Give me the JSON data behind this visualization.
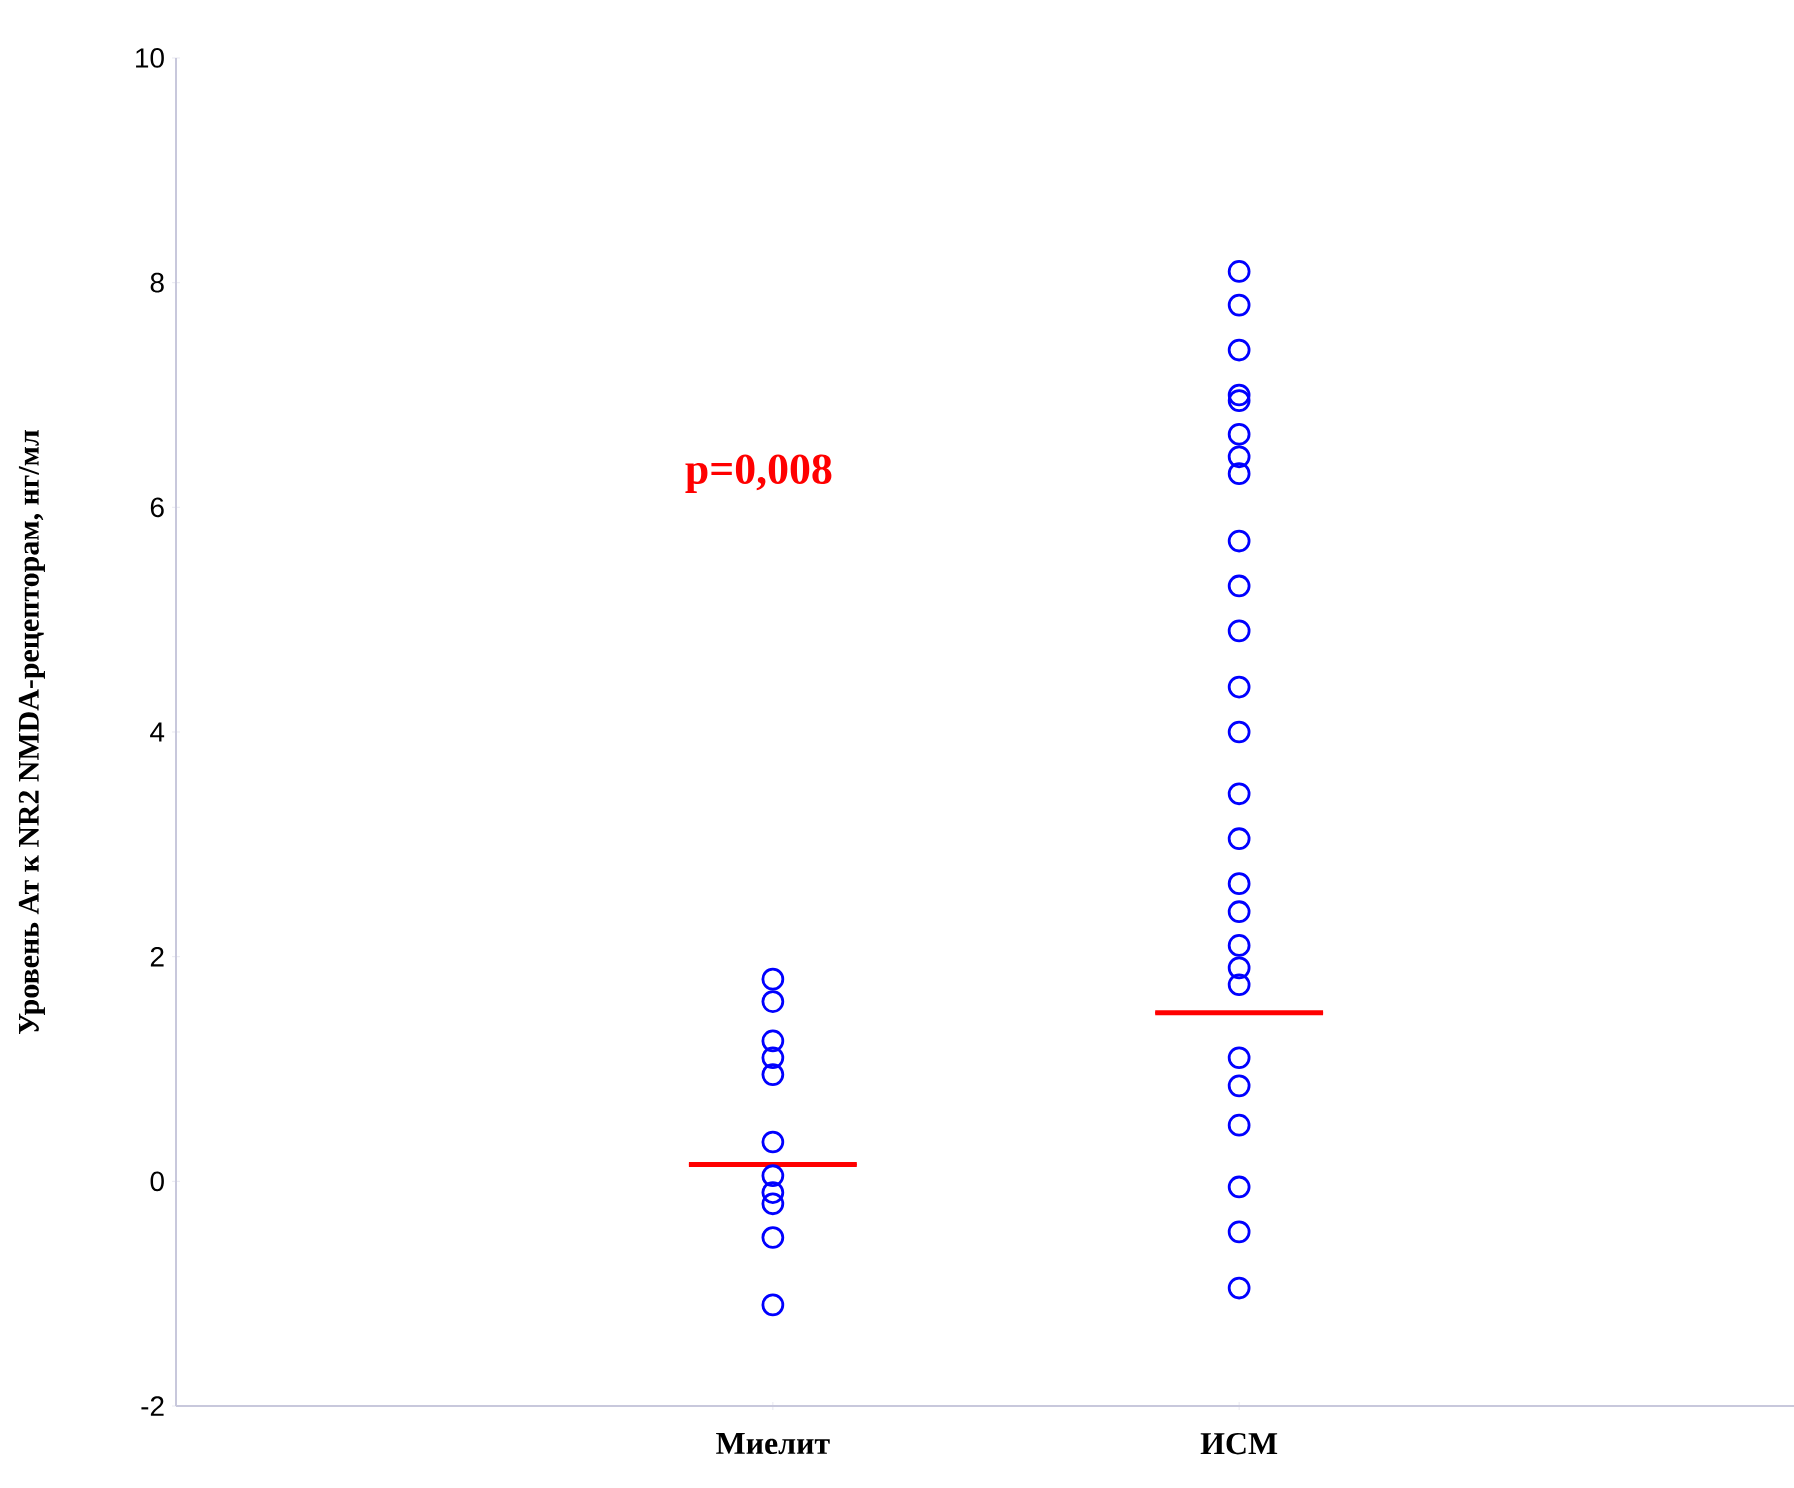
{
  "chart_data": {
    "type": "scatter",
    "ylabel": "Уровень Ат к NR2 NMDA-рецепторам, нг/мл",
    "categories": [
      "Миелит",
      "ИСМ"
    ],
    "series": [
      {
        "type": "box",
        "color": "#ff0000",
        "boxes": [
          {
            "low": 0.15,
            "q1": 0.15,
            "median": 0.15,
            "q3": 0.15,
            "high": 0.15
          },
          {
            "low": 1.5,
            "q1": 1.5,
            "median": 1.5,
            "q3": 1.5,
            "high": 1.5
          }
        ]
      },
      {
        "color": "#0000ff",
        "x": [
          "Миелит",
          "Миелит",
          "Миелит",
          "Миелит",
          "Миелит",
          "Миелит",
          "Миелит",
          "Миелит",
          "Миелит",
          "Миелит",
          "Миелит",
          "ИСМ",
          "ИСМ",
          "ИСМ",
          "ИСМ",
          "ИСМ",
          "ИСМ",
          "ИСМ",
          "ИСМ",
          "ИСМ",
          "ИСМ",
          "ИСМ",
          "ИСМ",
          "ИСМ",
          "ИСМ",
          "ИСМ",
          "ИСМ",
          "ИСМ",
          "ИСМ",
          "ИСМ",
          "ИСМ",
          "ИСМ",
          "ИСМ",
          "ИСМ",
          "ИСМ",
          "ИСМ",
          "ИСМ"
        ],
        "values": [
          1.8,
          1.6,
          1.25,
          1.1,
          0.95,
          0.35,
          0.05,
          -0.1,
          -0.2,
          -0.5,
          -1.1,
          8.1,
          7.8,
          7.4,
          7.0,
          6.95,
          6.65,
          6.45,
          6.3,
          5.7,
          5.3,
          4.9,
          4.4,
          4.0,
          3.45,
          3.05,
          2.65,
          2.4,
          2.1,
          1.9,
          1.75,
          1.1,
          0.85,
          0.5,
          -0.05,
          -0.45,
          -0.95
        ]
      }
    ],
    "ylim": [
      -2,
      10
    ],
    "yticks": [
      -2,
      0,
      2,
      4,
      6,
      8,
      10
    ],
    "marker": "circle",
    "grid": false,
    "annotations": [
      "p=0,008"
    ]
  }
}
